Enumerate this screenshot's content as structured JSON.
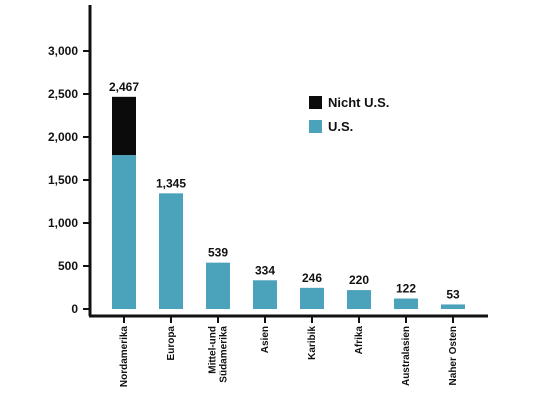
{
  "colors": {
    "us": "#4ba3bb",
    "non_us": "#0b0b0b",
    "axis": "#111111"
  },
  "chart_data": {
    "type": "bar",
    "stacked": true,
    "title": "",
    "xlabel": "",
    "ylabel": "",
    "ylim": [
      0,
      3000
    ],
    "yticks": [
      0,
      500,
      1000,
      1500,
      2000,
      2500,
      3000
    ],
    "ytick_labels": [
      "0",
      "500",
      "1,000",
      "1,500",
      "2,000",
      "2,500",
      "3,000"
    ],
    "categories": [
      "Nordamerika",
      "Europa",
      "Mittel-und Südamerika",
      "Asien",
      "Karibik",
      "Afrika",
      "Australasien",
      "Naher Osten"
    ],
    "category_labels": [
      [
        "Nordamerika"
      ],
      [
        "Europa"
      ],
      [
        "Mittel-und",
        "Südamerika"
      ],
      [
        "Asien"
      ],
      [
        "Karibik"
      ],
      [
        "Afrika"
      ],
      [
        "Australasien"
      ],
      [
        "Naher Osten"
      ]
    ],
    "series": [
      {
        "name": "U.S.",
        "values": [
          1790,
          1345,
          539,
          334,
          246,
          220,
          122,
          53
        ]
      },
      {
        "name": "Nicht U.S.",
        "values": [
          677,
          0,
          0,
          0,
          0,
          0,
          0,
          0
        ]
      }
    ],
    "totals": [
      2467,
      1345,
      539,
      334,
      246,
      220,
      122,
      53
    ],
    "total_labels": [
      "2,467",
      "1,345",
      "539",
      "334",
      "246",
      "220",
      "122",
      "53"
    ],
    "legend": {
      "position": "top-right",
      "entries": [
        "Nicht U.S.",
        "U.S."
      ]
    },
    "grid": false
  }
}
